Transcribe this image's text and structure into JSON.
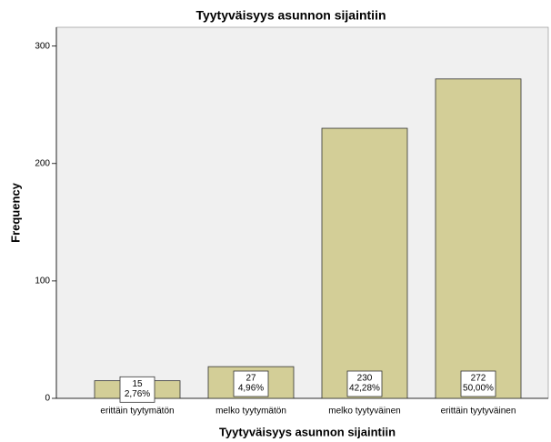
{
  "chart_data": {
    "type": "bar",
    "title": "Tyytyväisyys asunnon sijaintiin",
    "x_label": "Tyytyväisyys asunnon sijaintiin",
    "y_label": "Frequency",
    "categories": [
      "erittäin tyytymätön",
      "melko tyytymätön",
      "melko tyytyväinen",
      "erittäin tyytyväinen"
    ],
    "values": [
      15,
      27,
      230,
      272
    ],
    "percentages": [
      2.76,
      4.96,
      42.28,
      50.0
    ],
    "percentage_labels": [
      "2,76%",
      "4,96%",
      "42,28%",
      "50,00%"
    ],
    "color": "#d3ce97",
    "ylim": [
      0,
      316
    ],
    "yticks": [
      0,
      100,
      200,
      300
    ],
    "grid": false
  }
}
